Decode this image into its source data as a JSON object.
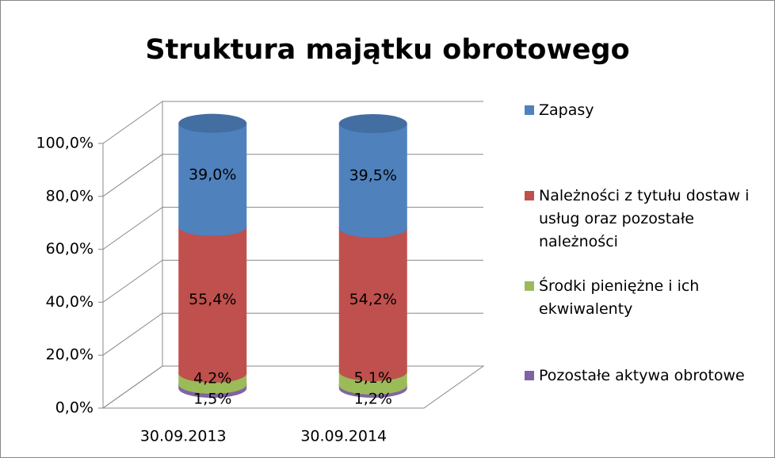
{
  "chart_data": {
    "type": "bar3d",
    "title": "Struktura majątku obrotowego",
    "categories": [
      "30.09.2013",
      "30.09.2014"
    ],
    "stacked": true,
    "grid": true,
    "legend": "right",
    "series": [
      {
        "name": "Pozostałe aktywa obrotowe",
        "color": "#8064a2",
        "values": [
          1.5,
          1.2
        ],
        "value_labels": [
          "1,5%",
          "1,2%"
        ]
      },
      {
        "name": "Środki pieniężne i ich ekwiwalenty",
        "color": "#9bbb59",
        "values": [
          4.2,
          5.1
        ],
        "value_labels": [
          "4,2%",
          "5,1%"
        ]
      },
      {
        "name": "Należności z tytułu dostaw i usług oraz pozostałe należności",
        "color": "#c0504d",
        "values": [
          55.4,
          54.2
        ],
        "value_labels": [
          "55,4%",
          "54,2%"
        ]
      },
      {
        "name": "Zapasy",
        "color": "#4f81bd",
        "values": [
          39.0,
          39.5
        ],
        "value_labels": [
          "39,0%",
          "39,5%"
        ]
      }
    ],
    "ylim": [
      0,
      100
    ],
    "yticks": [
      {
        "value": 0,
        "label": "0,0%"
      },
      {
        "value": 20,
        "label": "20,0%"
      },
      {
        "value": 40,
        "label": "40,0%"
      },
      {
        "value": 60,
        "label": "60,0%"
      },
      {
        "value": 80,
        "label": "80,0%"
      },
      {
        "value": 100,
        "label": "100,0%"
      }
    ]
  }
}
